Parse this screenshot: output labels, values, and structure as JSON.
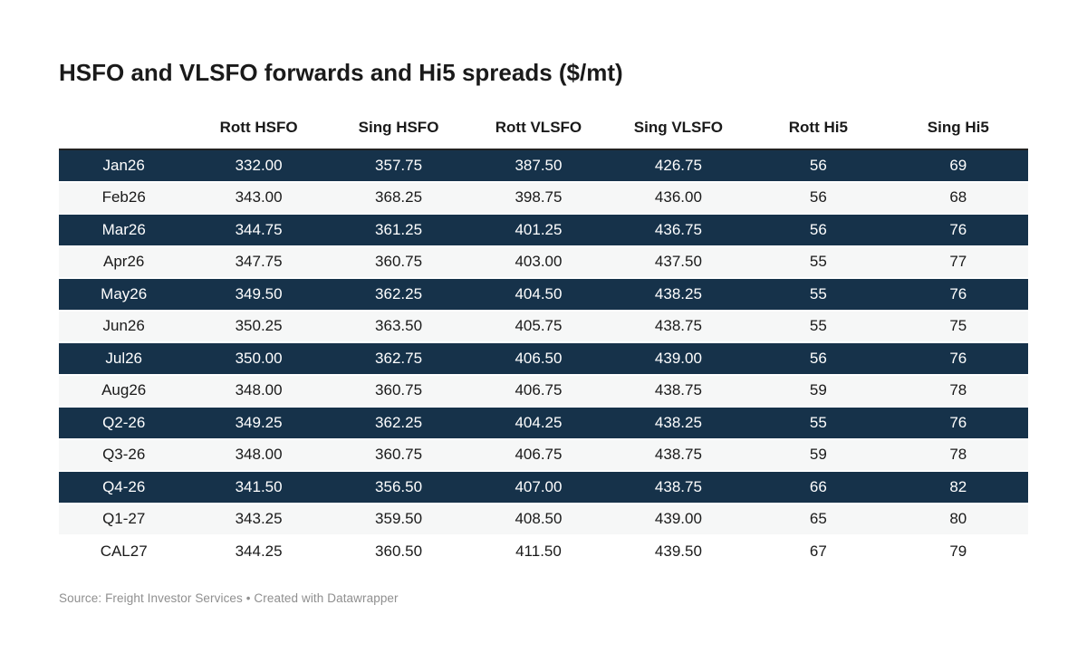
{
  "header": {
    "title": "HSFO and VLSFO forwards and Hi5 spreads ($/mt)"
  },
  "footer": {
    "text": "Source: Freight Investor Services • Created with Datawrapper"
  },
  "colors": {
    "highlight_row_bg": "#16324a",
    "highlight_row_text": "#ffffff",
    "stripe_row_bg": "#f6f7f7",
    "body_text": "#1a1a1a",
    "header_border": "#222222",
    "footer_text": "#8f8f8f"
  },
  "chart_data": {
    "type": "table",
    "title": "HSFO and VLSFO forwards and Hi5 spreads ($/mt)",
    "columns": [
      "",
      "Rott HSFO",
      "Sing HSFO",
      "Rott VLSFO",
      "Sing VLSFO",
      "Rott Hi5",
      "Sing Hi5"
    ],
    "rows": [
      {
        "label": "Jan26",
        "values": [
          "332.00",
          "357.75",
          "387.50",
          "426.75",
          "56",
          "69"
        ],
        "bg": "dark"
      },
      {
        "label": "Feb26",
        "values": [
          "343.00",
          "368.25",
          "398.75",
          "436.00",
          "56",
          "68"
        ],
        "bg": "light"
      },
      {
        "label": "Mar26",
        "values": [
          "344.75",
          "361.25",
          "401.25",
          "436.75",
          "56",
          "76"
        ],
        "bg": "dark"
      },
      {
        "label": "Apr26",
        "values": [
          "347.75",
          "360.75",
          "403.00",
          "437.50",
          "55",
          "77"
        ],
        "bg": "light"
      },
      {
        "label": "May26",
        "values": [
          "349.50",
          "362.25",
          "404.50",
          "438.25",
          "55",
          "76"
        ],
        "bg": "dark"
      },
      {
        "label": "Jun26",
        "values": [
          "350.25",
          "363.50",
          "405.75",
          "438.75",
          "55",
          "75"
        ],
        "bg": "light"
      },
      {
        "label": "Jul26",
        "values": [
          "350.00",
          "362.75",
          "406.50",
          "439.00",
          "56",
          "76"
        ],
        "bg": "dark"
      },
      {
        "label": "Aug26",
        "values": [
          "348.00",
          "360.75",
          "406.75",
          "438.75",
          "59",
          "78"
        ],
        "bg": "light"
      },
      {
        "label": "Q2-26",
        "values": [
          "349.25",
          "362.25",
          "404.25",
          "438.25",
          "55",
          "76"
        ],
        "bg": "dark"
      },
      {
        "label": "Q3-26",
        "values": [
          "348.00",
          "360.75",
          "406.75",
          "438.75",
          "59",
          "78"
        ],
        "bg": "light"
      },
      {
        "label": "Q4-26",
        "values": [
          "341.50",
          "356.50",
          "407.00",
          "438.75",
          "66",
          "82"
        ],
        "bg": "dark"
      },
      {
        "label": "Q1-27",
        "values": [
          "343.25",
          "359.50",
          "408.50",
          "439.00",
          "65",
          "80"
        ],
        "bg": "light"
      },
      {
        "label": "CAL27",
        "values": [
          "344.25",
          "360.50",
          "411.50",
          "439.50",
          "67",
          "79"
        ],
        "bg": "white"
      }
    ],
    "source": "Freight Investor Services",
    "attribution": "Created with Datawrapper",
    "layout_hints": {
      "column_alignment": "center",
      "highlight_style": "alternating navy rows",
      "grid": "off"
    }
  }
}
